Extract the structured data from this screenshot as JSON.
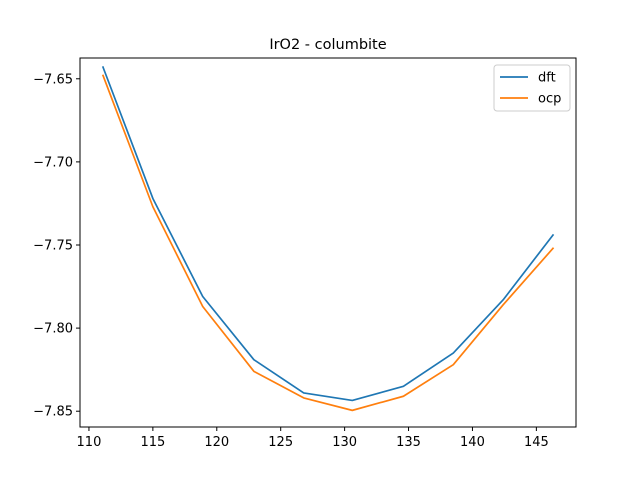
{
  "chart_data": {
    "type": "line",
    "title": "IrO2 - columbite",
    "xlabel": "",
    "ylabel": "",
    "xlim": [
      109.3,
      148.1
    ],
    "ylim": [
      -7.8595,
      -7.6375
    ],
    "x_ticks": [
      110,
      115,
      120,
      125,
      130,
      135,
      140,
      145
    ],
    "x_tick_labels": [
      "110",
      "115",
      "120",
      "125",
      "130",
      "135",
      "140",
      "145"
    ],
    "y_ticks": [
      -7.65,
      -7.7,
      -7.75,
      -7.8,
      -7.85
    ],
    "y_tick_labels": [
      "−7.65",
      "−7.70",
      "−7.75",
      "−7.80",
      "−7.85"
    ],
    "grid": false,
    "legend_position": "top-right",
    "series": [
      {
        "name": "dft",
        "color": "#1f77b4",
        "x": [
          111.1,
          115.0,
          118.9,
          122.9,
          126.8,
          130.6,
          134.6,
          138.5,
          142.4,
          146.3
        ],
        "y": [
          -7.643,
          -7.722,
          -7.781,
          -7.819,
          -7.839,
          -7.8435,
          -7.835,
          -7.815,
          -7.783,
          -7.744
        ]
      },
      {
        "name": "ocp",
        "color": "#ff7f0e",
        "x": [
          111.1,
          115.0,
          118.9,
          122.9,
          126.8,
          130.6,
          134.6,
          138.5,
          142.4,
          146.3
        ],
        "y": [
          -7.648,
          -7.727,
          -7.787,
          -7.826,
          -7.842,
          -7.8495,
          -7.841,
          -7.822,
          -7.786,
          -7.752
        ]
      }
    ]
  }
}
